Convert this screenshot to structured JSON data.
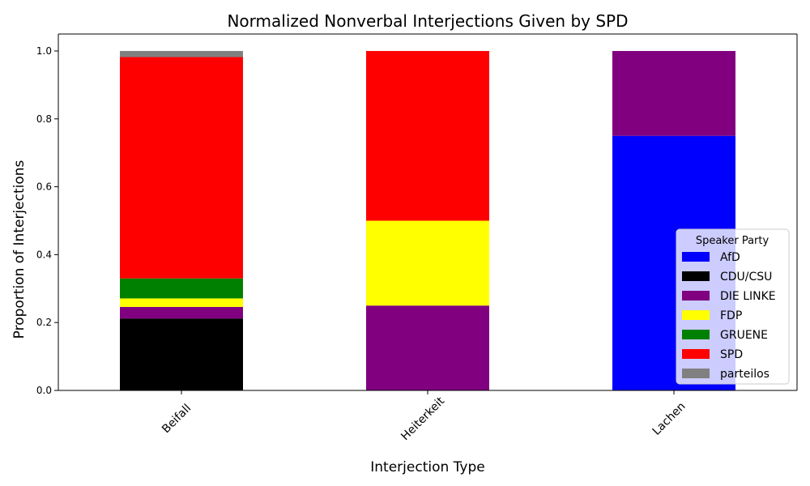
{
  "chart_data": {
    "type": "bar",
    "stacked": true,
    "title": "Normalized Nonverbal Interjections Given by SPD",
    "xlabel": "Interjection Type",
    "ylabel": "Proportion of Interjections",
    "categories": [
      "Beifall",
      "Heiterkeit",
      "Lachen"
    ],
    "ylim": [
      0,
      1.05
    ],
    "yticks": [
      "0.0",
      "0.2",
      "0.4",
      "0.6",
      "0.8",
      "1.0"
    ],
    "ytick_values": [
      0,
      0.2,
      0.4,
      0.6,
      0.8,
      1.0
    ],
    "grid": false,
    "legend": {
      "title": "Speaker Party",
      "placement": "lower-right"
    },
    "series": [
      {
        "name": "AfD",
        "color": "#0000ff",
        "values": [
          0,
          0,
          0.75
        ]
      },
      {
        "name": "CDU/CSU",
        "color": "#000000",
        "values": [
          0.212,
          0,
          0
        ]
      },
      {
        "name": "DIE LINKE",
        "color": "#800080",
        "values": [
          0.034,
          0.25,
          0.25
        ]
      },
      {
        "name": "FDP",
        "color": "#ffff00",
        "values": [
          0.025,
          0.25,
          0
        ]
      },
      {
        "name": "GRUENE",
        "color": "#008000",
        "values": [
          0.059,
          0,
          0
        ]
      },
      {
        "name": "SPD",
        "color": "#ff0000",
        "values": [
          0.652,
          0.5,
          0
        ]
      },
      {
        "name": "parteilos",
        "color": "#808080",
        "values": [
          0.018,
          0,
          0
        ]
      }
    ]
  }
}
